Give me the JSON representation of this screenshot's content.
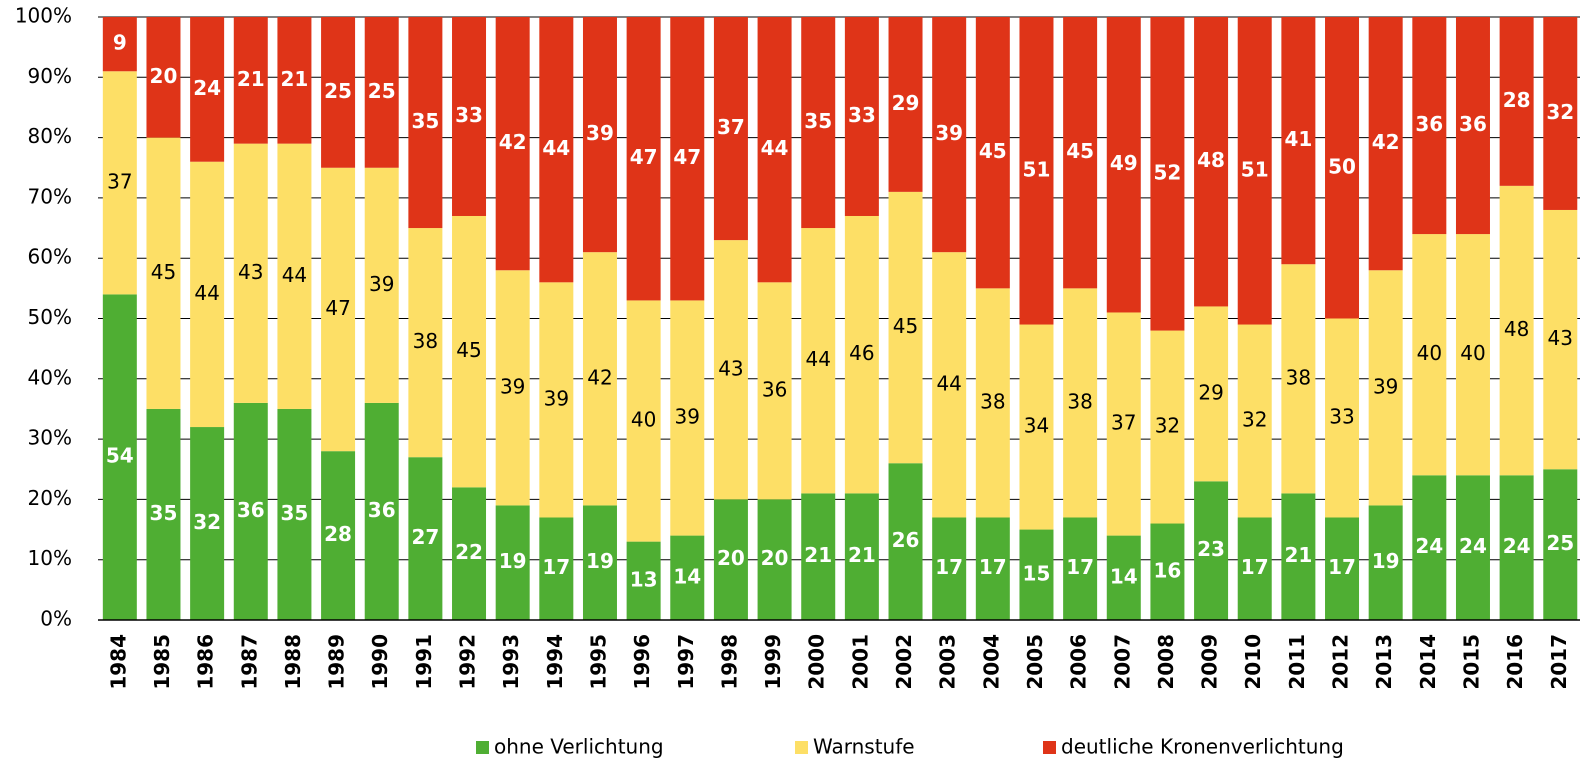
{
  "chart_data": {
    "type": "stacked-bar",
    "categories": [
      "1984",
      "1985",
      "1986",
      "1987",
      "1988",
      "1989",
      "1990",
      "1991",
      "1992",
      "1993",
      "1994",
      "1995",
      "1996",
      "1997",
      "1998",
      "1999",
      "2000",
      "2001",
      "2002",
      "2003",
      "2004",
      "2005",
      "2006",
      "2007",
      "2008",
      "2009",
      "2010",
      "2011",
      "2012",
      "2013",
      "2014",
      "2015",
      "2016",
      "2017"
    ],
    "series": [
      {
        "name": "ohne Verlichtung",
        "color": "#4fae33",
        "values": [
          54,
          35,
          32,
          36,
          35,
          28,
          36,
          27,
          22,
          19,
          17,
          19,
          13,
          14,
          20,
          20,
          21,
          21,
          26,
          17,
          17,
          15,
          17,
          14,
          16,
          23,
          17,
          21,
          17,
          19,
          24,
          24,
          24,
          25
        ]
      },
      {
        "name": "Warnstufe",
        "color": "#fddf66",
        "values": [
          37,
          45,
          44,
          43,
          44,
          47,
          39,
          38,
          45,
          39,
          39,
          42,
          40,
          39,
          43,
          36,
          44,
          46,
          45,
          44,
          38,
          34,
          38,
          37,
          32,
          29,
          32,
          38,
          33,
          39,
          40,
          40,
          48,
          43
        ]
      },
      {
        "name": "deutliche Kronenverlichtung",
        "color": "#df3418",
        "values": [
          9,
          20,
          24,
          21,
          21,
          25,
          25,
          35,
          33,
          42,
          44,
          39,
          47,
          47,
          37,
          44,
          35,
          33,
          29,
          39,
          45,
          51,
          45,
          49,
          52,
          48,
          51,
          41,
          50,
          42,
          36,
          36,
          28,
          32
        ]
      }
    ],
    "ylim": [
      0,
      100
    ],
    "yticks": [
      {
        "value": 0,
        "label": "0%"
      },
      {
        "value": 10,
        "label": "10%"
      },
      {
        "value": 20,
        "label": "20%"
      },
      {
        "value": 30,
        "label": "30%"
      },
      {
        "value": 40,
        "label": "40%"
      },
      {
        "value": 50,
        "label": "50%"
      },
      {
        "value": 60,
        "label": "60%"
      },
      {
        "value": 70,
        "label": "70%"
      },
      {
        "value": 80,
        "label": "80%"
      },
      {
        "value": 90,
        "label": "90%"
      },
      {
        "value": 100,
        "label": "100%"
      }
    ],
    "grid": true
  }
}
